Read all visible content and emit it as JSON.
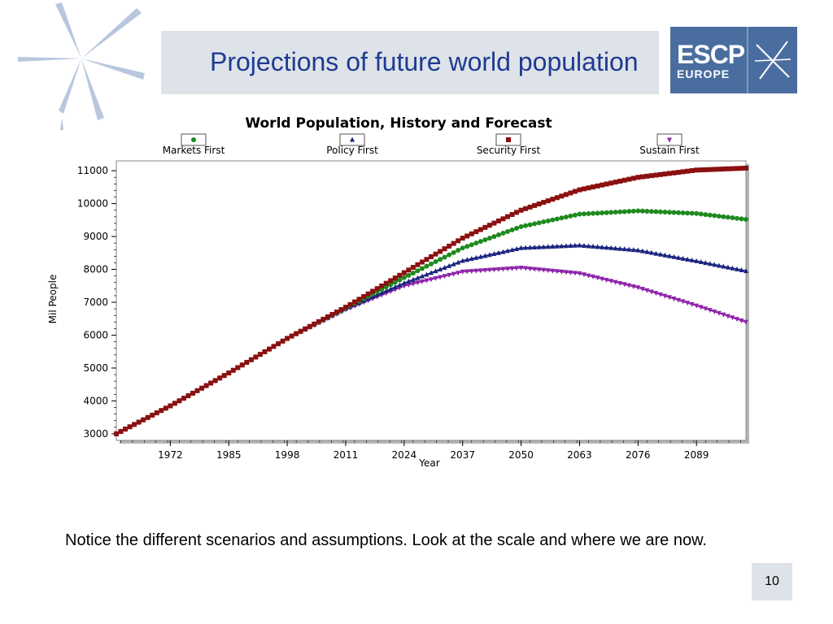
{
  "slide": {
    "title": "Projections of future world population",
    "caption": "Notice the different scenarios and assumptions. Look at the scale and where we are now.",
    "page_number": "10"
  },
  "logo": {
    "line1": "ESCP",
    "line2": "EUROPE",
    "bg_color": "#4a6da0"
  },
  "chart_data": {
    "type": "line",
    "title": "World Population, History and Forecast",
    "xlabel": "Year",
    "ylabel": "Mil People",
    "xlim": [
      1960,
      2100
    ],
    "ylim": [
      2800,
      11300
    ],
    "x_ticks": [
      1972,
      1985,
      1998,
      2011,
      2024,
      2037,
      2050,
      2063,
      2076,
      2089
    ],
    "y_ticks": [
      3000,
      4000,
      5000,
      6000,
      7000,
      8000,
      9000,
      10000,
      11000
    ],
    "legend_position": "top",
    "grid": false,
    "series": [
      {
        "name": "Markets First",
        "color": "#1e8a1e",
        "marker": "circle",
        "x": [
          1960,
          1972,
          1985,
          1998,
          2011,
          2024,
          2037,
          2050,
          2063,
          2076,
          2089,
          2100
        ],
        "values": [
          3000,
          3850,
          4850,
          5900,
          6820,
          7750,
          8650,
          9300,
          9680,
          9780,
          9700,
          9520
        ]
      },
      {
        "name": "Policy First",
        "color": "#1a237e",
        "marker": "triangle-up",
        "x": [
          1960,
          1972,
          1985,
          1998,
          2011,
          2024,
          2037,
          2050,
          2063,
          2076,
          2089,
          2100
        ],
        "values": [
          3000,
          3850,
          4850,
          5900,
          6800,
          7580,
          8260,
          8650,
          8730,
          8580,
          8250,
          7950
        ]
      },
      {
        "name": "Security First",
        "color": "#8b1010",
        "marker": "square",
        "x": [
          1960,
          1972,
          1985,
          1998,
          2011,
          2024,
          2037,
          2050,
          2063,
          2076,
          2089,
          2100
        ],
        "values": [
          3000,
          3850,
          4850,
          5900,
          6850,
          7900,
          8950,
          9800,
          10420,
          10800,
          11020,
          11080
        ]
      },
      {
        "name": "Sustain First",
        "color": "#8e24aa",
        "marker": "triangle-down",
        "x": [
          1960,
          1972,
          1985,
          1998,
          2011,
          2024,
          2037,
          2050,
          2063,
          2076,
          2089,
          2100
        ],
        "values": [
          3000,
          3850,
          4850,
          5900,
          6780,
          7500,
          7930,
          8050,
          7880,
          7450,
          6900,
          6400
        ]
      }
    ]
  }
}
